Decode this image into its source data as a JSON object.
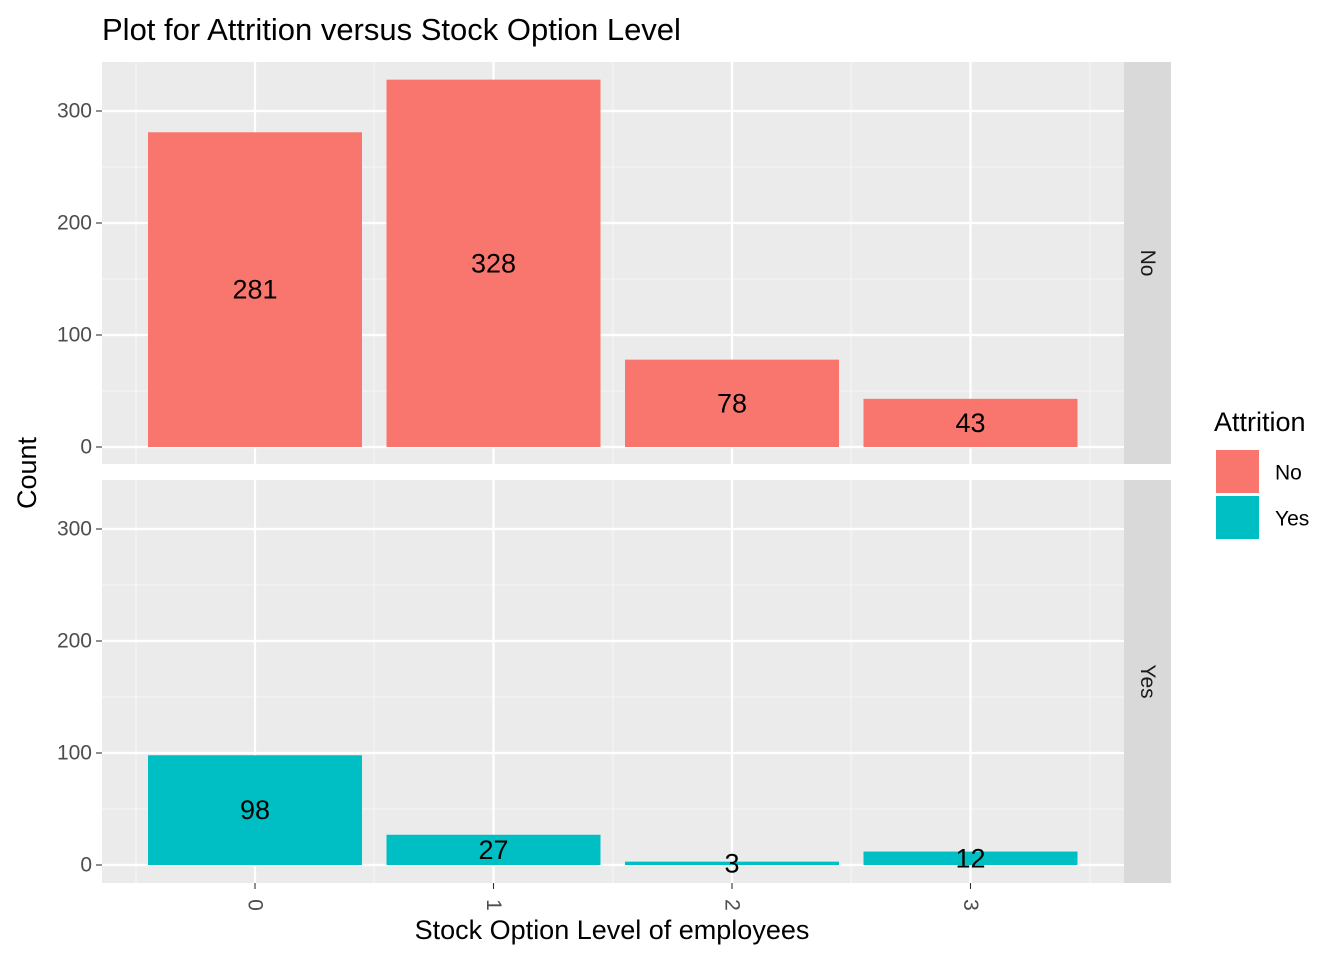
{
  "chart_data": {
    "type": "bar",
    "title": "Plot for Attrition versus Stock Option Level",
    "xlabel": "Stock Option Level of employees",
    "ylabel": "Count",
    "categories": [
      "0",
      "1",
      "2",
      "3"
    ],
    "ylim": [
      0,
      345
    ],
    "yticks": [
      0,
      100,
      200,
      300
    ],
    "grid": true,
    "facets": [
      "No",
      "Yes"
    ],
    "series": [
      {
        "name": "No",
        "color": "#F8766D",
        "values": [
          281,
          328,
          78,
          43
        ]
      },
      {
        "name": "Yes",
        "color": "#00BFC4",
        "values": [
          98,
          27,
          3,
          12
        ]
      }
    ],
    "legend": {
      "title": "Attrition",
      "position": "right",
      "items": [
        "No",
        "Yes"
      ]
    }
  }
}
